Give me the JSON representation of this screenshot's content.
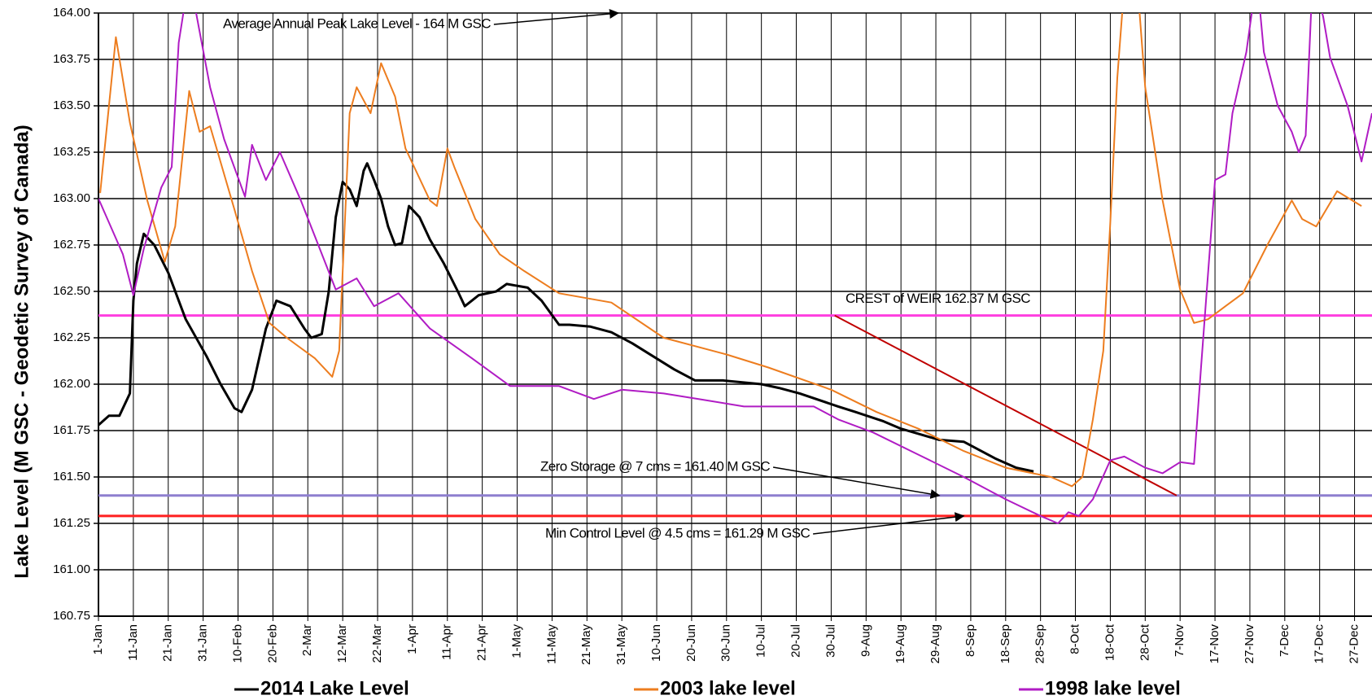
{
  "chart_data": {
    "type": "line",
    "y_label": "Lake Level (M GSC - Geodetic Survey of Canada)",
    "xlim": [
      1,
      366
    ],
    "ylim": [
      160.75,
      164.0
    ],
    "grid": true,
    "legend": "bottom",
    "xticks": [
      {
        "value": 1,
        "label": "1-Jan"
      },
      {
        "value": 11,
        "label": "11-Jan"
      },
      {
        "value": 21,
        "label": "21-Jan"
      },
      {
        "value": 31,
        "label": "31-Jan"
      },
      {
        "value": 41,
        "label": "10-Feb"
      },
      {
        "value": 51,
        "label": "20-Feb"
      },
      {
        "value": 61,
        "label": "2-Mar"
      },
      {
        "value": 71,
        "label": "12-Mar"
      },
      {
        "value": 81,
        "label": "22-Mar"
      },
      {
        "value": 91,
        "label": "1-Apr"
      },
      {
        "value": 101,
        "label": "11-Apr"
      },
      {
        "value": 111,
        "label": "21-Apr"
      },
      {
        "value": 121,
        "label": "1-May"
      },
      {
        "value": 131,
        "label": "11-May"
      },
      {
        "value": 141,
        "label": "21-May"
      },
      {
        "value": 151,
        "label": "31-May"
      },
      {
        "value": 161,
        "label": "10-Jun"
      },
      {
        "value": 171,
        "label": "20-Jun"
      },
      {
        "value": 181,
        "label": "30-Jun"
      },
      {
        "value": 191,
        "label": "10-Jul"
      },
      {
        "value": 201,
        "label": "20-Jul"
      },
      {
        "value": 211,
        "label": "30-Jul"
      },
      {
        "value": 221,
        "label": "9-Aug"
      },
      {
        "value": 231,
        "label": "19-Aug"
      },
      {
        "value": 241,
        "label": "29-Aug"
      },
      {
        "value": 251,
        "label": "8-Sep"
      },
      {
        "value": 261,
        "label": "18-Sep"
      },
      {
        "value": 271,
        "label": "28-Sep"
      },
      {
        "value": 281,
        "label": "8-Oct"
      },
      {
        "value": 291,
        "label": "18-Oct"
      },
      {
        "value": 301,
        "label": "28-Oct"
      },
      {
        "value": 311,
        "label": "7-Nov"
      },
      {
        "value": 321,
        "label": "17-Nov"
      },
      {
        "value": 331,
        "label": "27-Nov"
      },
      {
        "value": 341,
        "label": "7-Dec"
      },
      {
        "value": 351,
        "label": "17-Dec"
      },
      {
        "value": 361,
        "label": "27-Dec"
      }
    ],
    "yticks": [
      {
        "value": 160.75,
        "label": "160.75"
      },
      {
        "value": 161.0,
        "label": "161.00"
      },
      {
        "value": 161.25,
        "label": "161.25"
      },
      {
        "value": 161.5,
        "label": "161.50"
      },
      {
        "value": 161.75,
        "label": "161.75"
      },
      {
        "value": 162.0,
        "label": "162.00"
      },
      {
        "value": 162.25,
        "label": "162.25"
      },
      {
        "value": 162.5,
        "label": "162.50"
      },
      {
        "value": 162.75,
        "label": "162.75"
      },
      {
        "value": 163.0,
        "label": "163.00"
      },
      {
        "value": 163.25,
        "label": "163.25"
      },
      {
        "value": 163.5,
        "label": "163.50"
      },
      {
        "value": 163.75,
        "label": "163.75"
      },
      {
        "value": 164.0,
        "label": "164.00"
      }
    ],
    "series": [
      {
        "name": "2014 Lake Level",
        "color": "#000000",
        "width": 3,
        "x": [
          1,
          4,
          7,
          10,
          11,
          12,
          14,
          17,
          21,
          26,
          32,
          36,
          40,
          42,
          45,
          49,
          52,
          56,
          60,
          62,
          65,
          67,
          69,
          71,
          73,
          75,
          77,
          78,
          80,
          82,
          84,
          86,
          88,
          90,
          93,
          96,
          100,
          104,
          106,
          110,
          115,
          118,
          124,
          128,
          133,
          136,
          142,
          148,
          154,
          160,
          166,
          172,
          180,
          191,
          196,
          202,
          213,
          218,
          226,
          231,
          242,
          249,
          258,
          264,
          269
        ],
        "values": [
          161.78,
          161.83,
          161.83,
          161.95,
          162.45,
          162.65,
          162.81,
          162.75,
          162.6,
          162.35,
          162.15,
          162.0,
          161.87,
          161.85,
          161.97,
          162.3,
          162.45,
          162.42,
          162.3,
          162.25,
          162.27,
          162.5,
          162.9,
          163.09,
          163.05,
          162.96,
          163.15,
          163.19,
          163.1,
          163.0,
          162.85,
          162.75,
          162.76,
          162.96,
          162.9,
          162.78,
          162.65,
          162.5,
          162.42,
          162.48,
          162.5,
          162.54,
          162.52,
          162.45,
          162.32,
          162.32,
          162.31,
          162.28,
          162.22,
          162.15,
          162.08,
          162.02,
          162.02,
          162.0,
          161.98,
          161.95,
          161.88,
          161.85,
          161.8,
          161.76,
          161.7,
          161.69,
          161.6,
          161.55,
          161.53
        ]
      },
      {
        "name": "2003 lake level",
        "color": "#ed7d1f",
        "width": 2,
        "x": [
          1.5,
          6,
          10,
          15,
          20,
          23,
          27,
          30,
          33,
          40,
          45,
          50,
          55,
          63,
          68,
          70,
          73,
          75,
          79,
          82,
          86,
          89,
          96,
          98,
          101,
          103,
          109,
          116,
          123,
          133,
          148,
          163,
          181,
          193,
          211,
          224,
          236,
          249,
          261,
          274,
          280,
          283,
          286,
          289,
          291,
          293,
          296,
          299,
          301,
          306,
          311,
          315,
          319,
          324,
          329,
          336,
          343,
          346,
          350,
          356,
          363
        ],
        "values": [
          163.03,
          163.87,
          163.41,
          162.99,
          162.66,
          162.85,
          163.58,
          163.36,
          163.39,
          162.94,
          162.61,
          162.33,
          162.25,
          162.14,
          162.04,
          162.18,
          163.46,
          163.6,
          163.46,
          163.73,
          163.55,
          163.27,
          162.99,
          162.96,
          163.27,
          163.17,
          162.89,
          162.7,
          162.61,
          162.49,
          162.44,
          162.25,
          162.16,
          162.09,
          161.97,
          161.85,
          161.76,
          161.64,
          161.55,
          161.5,
          161.45,
          161.5,
          161.81,
          162.18,
          162.87,
          163.65,
          164.4,
          164.1,
          163.6,
          162.99,
          162.51,
          162.33,
          162.35,
          162.42,
          162.49,
          162.75,
          162.99,
          162.89,
          162.85,
          163.04,
          162.96
        ]
      },
      {
        "name": "1998 lake level",
        "color": "#b01cc4",
        "width": 2,
        "x": [
          1,
          8,
          11,
          14,
          19,
          22,
          24,
          27,
          30,
          33,
          37,
          43,
          45,
          49,
          53,
          59,
          69,
          75,
          80,
          87,
          96,
          108,
          119,
          133,
          143,
          151,
          163,
          173,
          186,
          206,
          213,
          223,
          236,
          249,
          261,
          271,
          276,
          279,
          282,
          286,
          291,
          295,
          301,
          306,
          311,
          315,
          317,
          321,
          324,
          326,
          330,
          333,
          335,
          339,
          343,
          345,
          347,
          349,
          352,
          354,
          359,
          363,
          366
        ],
        "values": [
          163.0,
          162.7,
          162.48,
          162.73,
          163.06,
          163.17,
          163.84,
          164.2,
          163.9,
          163.6,
          163.32,
          163.01,
          163.29,
          163.1,
          163.25,
          162.99,
          162.51,
          162.57,
          162.42,
          162.49,
          162.3,
          162.14,
          161.99,
          161.99,
          161.92,
          161.97,
          161.95,
          161.92,
          161.88,
          161.88,
          161.81,
          161.74,
          161.62,
          161.5,
          161.38,
          161.29,
          161.25,
          161.31,
          161.29,
          161.38,
          161.59,
          161.61,
          161.55,
          161.52,
          161.58,
          161.57,
          162.09,
          163.1,
          163.13,
          163.46,
          163.79,
          164.2,
          163.79,
          163.5,
          163.36,
          163.25,
          163.34,
          164.2,
          163.98,
          163.76,
          163.5,
          163.2,
          163.46
        ]
      }
    ],
    "reference_lines": [
      {
        "label": "CREST of WEIR 162.37 M GSC",
        "value": 162.37,
        "color": "#ff3ee0"
      },
      {
        "label": "Zero Storage @ 7 cms = 161.40 M GSC",
        "value": 161.4,
        "color": "#8e7fcf"
      },
      {
        "label": "Min Control Level @ 4.5 cms = 161.29 M GSC",
        "value": 161.29,
        "color": "#ff1f1f"
      }
    ],
    "trend_line": {
      "x": [
        212,
        310
      ],
      "y": [
        162.37,
        161.4
      ],
      "color": "#c00000"
    },
    "annotations": [
      {
        "text": "Average Annual Peak Lake Level - 164 M GSC"
      }
    ]
  }
}
